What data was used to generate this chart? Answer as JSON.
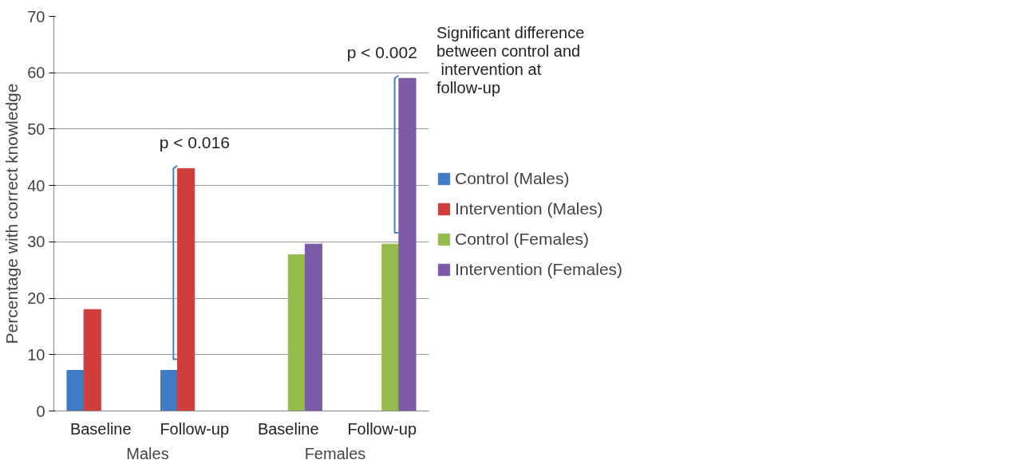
{
  "chart_data": {
    "type": "bar",
    "ylabel": "Percentage with correct knowledge",
    "categories": [
      "Baseline",
      "Follow-up",
      "Baseline",
      "Follow-up"
    ],
    "series": [
      {
        "name": "Control (Males)",
        "color": "#3f7cc4",
        "values": [
          7.2,
          7.2,
          null,
          null
        ]
      },
      {
        "name": "Intervention (Males)",
        "color": "#cf3e3b",
        "values": [
          18,
          43,
          null,
          null
        ]
      },
      {
        "name": "Control (Females)",
        "color": "#95bb4c",
        "values": [
          null,
          null,
          27.7,
          29.6
        ]
      },
      {
        "name": "Intervention (Females)",
        "color": "#7c5aa8",
        "values": [
          null,
          null,
          29.6,
          59
        ]
      }
    ],
    "ylim": [
      0,
      70
    ],
    "yticks": [
      0,
      10,
      20,
      30,
      40,
      50,
      60,
      70
    ],
    "grid": "y",
    "legend": "right",
    "annotations": [
      "Males",
      "Females",
      "p < 0.016",
      "p < 0.002",
      "Significant difference\nbetween control and\n intervention at\nfollow-up"
    ]
  }
}
